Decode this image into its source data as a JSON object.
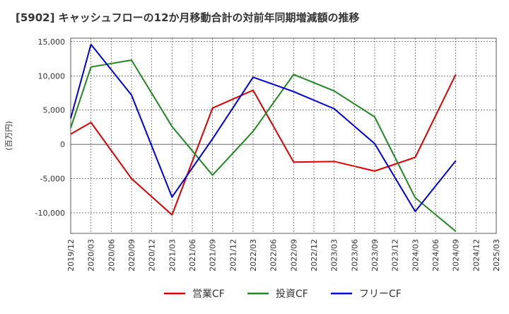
{
  "chart_data": {
    "type": "line",
    "title": "[5902]  キャッシュフローの12か月移動合計の対前年同期増減額の推移",
    "ylabel": "(百万円)",
    "xlabel": "",
    "x_ticks": [
      "2019/12",
      "2020/03",
      "2020/06",
      "2020/09",
      "2020/12",
      "2021/03",
      "2021/06",
      "2021/09",
      "2021/12",
      "2022/03",
      "2022/06",
      "2022/09",
      "2022/12",
      "2023/03",
      "2023/06",
      "2023/09",
      "2023/12",
      "2024/03",
      "2024/06",
      "2024/09",
      "2024/12",
      "2025/03"
    ],
    "y_ticks": [
      15000,
      10000,
      5000,
      0,
      -5000,
      -10000
    ],
    "y_tick_labels": [
      "15,000",
      "10,000",
      "5,000",
      "0",
      "-5,000",
      "-10,000"
    ],
    "ylim": [
      -13000,
      15500
    ],
    "grid": true,
    "legend_position": "bottom",
    "series": [
      {
        "name": "営業CF",
        "color": "#dd0000",
        "x": [
          "2019/12",
          "2020/03",
          "2020/09",
          "2021/03",
          "2021/09",
          "2022/03",
          "2022/09",
          "2023/03",
          "2023/09",
          "2024/03",
          "2024/09"
        ],
        "values": [
          1500,
          3200,
          -5000,
          -10300,
          5300,
          7900,
          -2600,
          -2500,
          -3900,
          -1900,
          10200
        ]
      },
      {
        "name": "投資CF",
        "color": "#228822",
        "x": [
          "2019/12",
          "2020/03",
          "2020/09",
          "2021/03",
          "2021/09",
          "2022/03",
          "2022/09",
          "2023/03",
          "2023/09",
          "2024/03",
          "2024/09"
        ],
        "values": [
          2400,
          11300,
          12300,
          2600,
          -4500,
          1900,
          10200,
          7800,
          4000,
          -7800,
          -12700
        ]
      },
      {
        "name": "フリーCF",
        "color": "#0000dd",
        "x": [
          "2019/12",
          "2020/03",
          "2020/09",
          "2021/03",
          "2021/09",
          "2022/03",
          "2022/09",
          "2023/03",
          "2023/09",
          "2024/03",
          "2024/09"
        ],
        "values": [
          3800,
          14600,
          7200,
          -7700,
          800,
          9800,
          7700,
          5200,
          100,
          -9800,
          -2400
        ]
      }
    ]
  }
}
